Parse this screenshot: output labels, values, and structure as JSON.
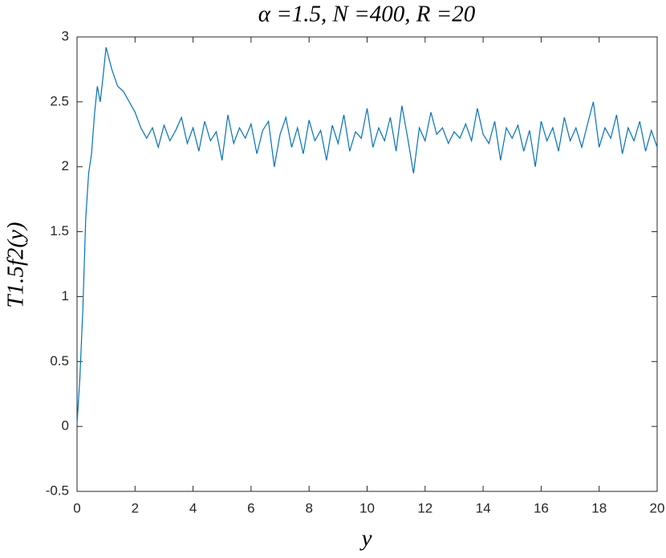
{
  "chart_data": {
    "type": "line",
    "title": "α =1.5, N =400, R =20",
    "xlabel": "y",
    "ylabel": "T1.5f2(y)",
    "xlim": [
      0,
      20
    ],
    "xticks": [
      0,
      2,
      4,
      6,
      8,
      10,
      12,
      14,
      16,
      18,
      20
    ],
    "ylim": [
      -0.5,
      3
    ],
    "yticks": [
      -0.5,
      0,
      0.5,
      1,
      1.5,
      2,
      2.5,
      3
    ],
    "series": [
      {
        "color": "#0072bd",
        "x": [
          0,
          0.1,
          0.2,
          0.3,
          0.4,
          0.5,
          0.6,
          0.7,
          0.8,
          0.9,
          1.0,
          1.2,
          1.4,
          1.6,
          1.8,
          2.0,
          2.2,
          2.4,
          2.6,
          2.8,
          3.0,
          3.2,
          3.4,
          3.6,
          3.8,
          4.0,
          4.2,
          4.4,
          4.6,
          4.8,
          5.0,
          5.2,
          5.4,
          5.6,
          5.8,
          6.0,
          6.2,
          6.4,
          6.6,
          6.8,
          7.0,
          7.2,
          7.4,
          7.6,
          7.8,
          8.0,
          8.2,
          8.4,
          8.6,
          8.8,
          9.0,
          9.2,
          9.4,
          9.6,
          9.8,
          10.0,
          10.2,
          10.4,
          10.6,
          10.8,
          11.0,
          11.2,
          11.4,
          11.6,
          11.8,
          12.0,
          12.2,
          12.4,
          12.6,
          12.8,
          13.0,
          13.2,
          13.4,
          13.6,
          13.8,
          14.0,
          14.2,
          14.4,
          14.6,
          14.8,
          15.0,
          15.2,
          15.4,
          15.6,
          15.8,
          16.0,
          16.2,
          16.4,
          16.6,
          16.8,
          17.0,
          17.2,
          17.4,
          17.6,
          17.8,
          18.0,
          18.2,
          18.4,
          18.6,
          18.8,
          19.0,
          19.2,
          19.4,
          19.6,
          19.8,
          20.0
        ],
        "values": [
          0.02,
          0.38,
          0.9,
          1.6,
          1.95,
          2.1,
          2.4,
          2.62,
          2.5,
          2.7,
          2.92,
          2.75,
          2.62,
          2.58,
          2.5,
          2.42,
          2.3,
          2.22,
          2.3,
          2.15,
          2.32,
          2.2,
          2.28,
          2.38,
          2.18,
          2.3,
          2.12,
          2.35,
          2.2,
          2.27,
          2.05,
          2.4,
          2.18,
          2.3,
          2.22,
          2.33,
          2.1,
          2.28,
          2.35,
          2.0,
          2.25,
          2.38,
          2.15,
          2.3,
          2.1,
          2.36,
          2.2,
          2.28,
          2.05,
          2.32,
          2.18,
          2.4,
          2.12,
          2.27,
          2.22,
          2.45,
          2.15,
          2.3,
          2.2,
          2.38,
          2.12,
          2.47,
          2.22,
          1.95,
          2.3,
          2.2,
          2.42,
          2.25,
          2.3,
          2.18,
          2.27,
          2.22,
          2.33,
          2.2,
          2.45,
          2.25,
          2.18,
          2.35,
          2.05,
          2.3,
          2.22,
          2.32,
          2.12,
          2.28,
          2.0,
          2.35,
          2.2,
          2.3,
          2.12,
          2.38,
          2.2,
          2.3,
          2.15,
          2.33,
          2.5,
          2.15,
          2.3,
          2.22,
          2.4,
          2.1,
          2.3,
          2.2,
          2.35,
          2.12,
          2.28,
          2.15
        ]
      }
    ]
  }
}
